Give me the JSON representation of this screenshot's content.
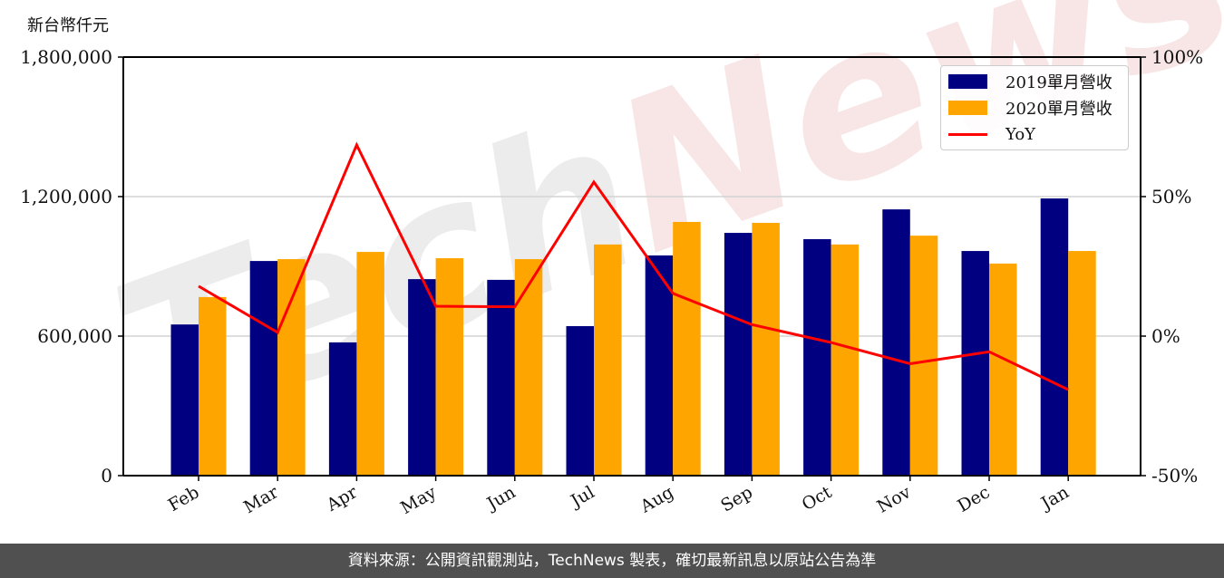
{
  "header": {
    "unit_label": "新台幣仟元"
  },
  "footer": {
    "text": "資料來源：公開資訊觀測站，TechNews 製表，確切最新訊息以原站公告為準"
  },
  "watermark": {
    "text": "TechNews"
  },
  "colors": {
    "series_2019": "#000080",
    "series_2020": "#FFA500",
    "yoy": "#FF0000",
    "grid": "#d3d3d3",
    "footer_bg": "#505050"
  },
  "legend": {
    "items": [
      {
        "label": "2019單月營收",
        "type": "bar"
      },
      {
        "label": "2020單月營收",
        "type": "bar"
      },
      {
        "label": "YoY",
        "type": "line"
      }
    ]
  },
  "chart_data": {
    "type": "bar",
    "title": "",
    "xlabel": "",
    "ylabel": "新台幣仟元",
    "y2label": "",
    "categories": [
      "Feb",
      "Mar",
      "Apr",
      "May",
      "Jun",
      "Jul",
      "Aug",
      "Sep",
      "Oct",
      "Nov",
      "Dec",
      "Jan"
    ],
    "series": [
      {
        "name": "2019單月營收",
        "type": "bar",
        "axis": "left",
        "values": [
          650000,
          923000,
          573000,
          845000,
          842000,
          643000,
          947000,
          1044000,
          1017000,
          1145000,
          966000,
          1192000
        ]
      },
      {
        "name": "2020單月營收",
        "type": "bar",
        "axis": "left",
        "values": [
          768000,
          931000,
          962000,
          935000,
          931000,
          994000,
          1091000,
          1087000,
          994000,
          1032000,
          912000,
          966000
        ]
      },
      {
        "name": "YoY",
        "type": "line",
        "axis": "right",
        "unit": "%",
        "values": [
          17.9,
          1.3,
          68.5,
          10.7,
          10.5,
          55.2,
          15.3,
          4.1,
          -2.3,
          -9.9,
          -5.6,
          -19.2
        ]
      }
    ],
    "ylim": [
      0,
      1800000
    ],
    "y2lim": [
      -50,
      100
    ],
    "yticks": [
      0,
      600000,
      1200000,
      1800000
    ],
    "ytick_labels": [
      "0",
      "600,000",
      "1,200,000",
      "1,800,000"
    ],
    "y2ticks": [
      -50,
      0,
      50,
      100
    ],
    "y2tick_labels": [
      "-50%",
      "0%",
      "50%",
      "100%"
    ],
    "grid": "horizontal",
    "legend_position": "upper right"
  }
}
